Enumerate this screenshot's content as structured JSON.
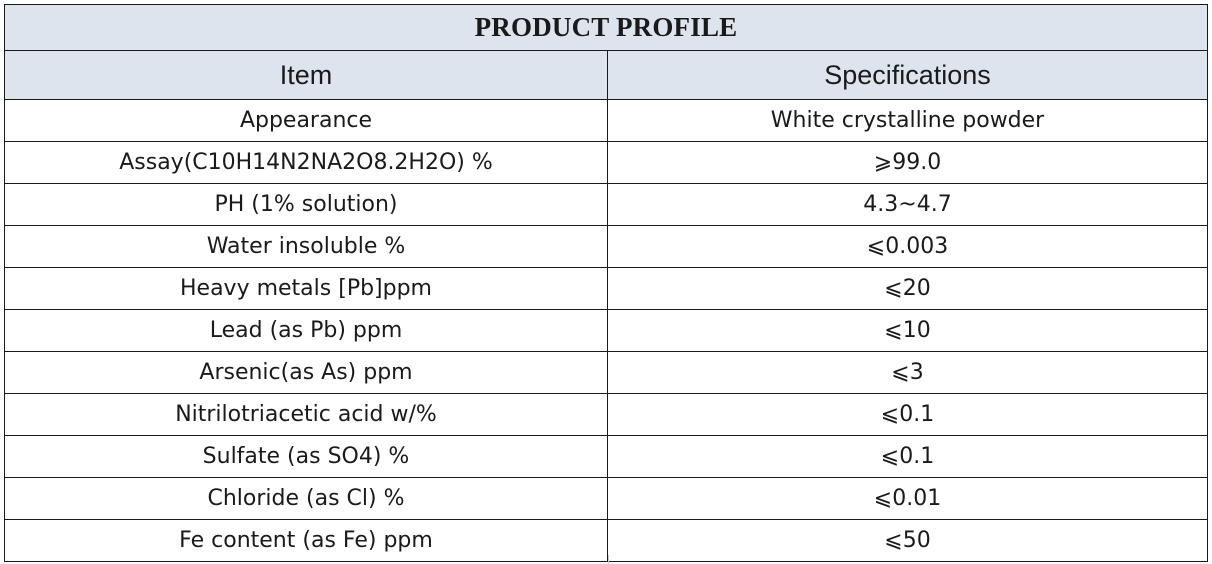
{
  "table": {
    "title": "PRODUCT PROFILE",
    "headers": [
      "Item",
      "Specifications"
    ],
    "rows": [
      {
        "item": "Appearance",
        "spec": "White crystalline powder"
      },
      {
        "item": "Assay(C10H14N2NA2O8.2H2O) %",
        "spec": "⩾99.0"
      },
      {
        "item": "PH (1% solution)",
        "spec": "4.3~4.7"
      },
      {
        "item": "Water insoluble %",
        "spec": "⩽0.003"
      },
      {
        "item": "Heavy metals [Pb]ppm",
        "spec": "⩽20"
      },
      {
        "item": "Lead (as Pb) ppm",
        "spec": "⩽10"
      },
      {
        "item": "Arsenic(as As) ppm",
        "spec": "⩽3"
      },
      {
        "item": "Nitrilotriacetic acid w/%",
        "spec": "⩽0.1"
      },
      {
        "item": "Sulfate (as SO4) %",
        "spec": "⩽0.1"
      },
      {
        "item": "Chloride (as Cl) %",
        "spec": "⩽0.01"
      },
      {
        "item": "Fe content (as Fe) ppm",
        "spec": "⩽50"
      }
    ]
  },
  "colors": {
    "header_background": "#dde4ee",
    "border": "#1a1a1a",
    "text": "#262626"
  }
}
